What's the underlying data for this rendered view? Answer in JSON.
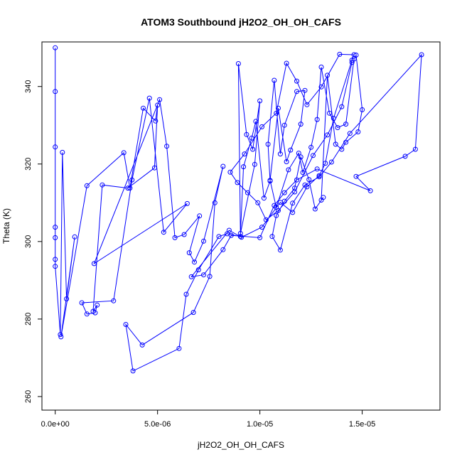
{
  "chart_data": {
    "type": "line",
    "title": "ATOM3 Southbound jH2O2_OH_OH_CAFS",
    "xlabel": "jH2O2_OH_OH_CAFS",
    "ylabel": "Theta (K)",
    "xlim": [
      -6.5e-07,
      1.88e-05
    ],
    "ylim": [
      256.5,
      351.5
    ],
    "x_ticks": [
      0,
      5e-06,
      1e-05,
      1.5e-05
    ],
    "x_tick_labels": [
      "0.0e+00",
      "5.0e-06",
      "1.0e-05",
      "1.5e-05"
    ],
    "y_ticks": [
      260,
      280,
      300,
      320,
      340
    ],
    "y_tick_labels": [
      "260",
      "280",
      "300",
      "320",
      "340"
    ],
    "grid": false,
    "color": "#0000ff",
    "markers": "open-circle",
    "series": [
      {
        "x": [
          0.0,
          0.0,
          0.0,
          0.0,
          0.0,
          0.0,
          0.0,
          2.5e-07,
          3.5e-07,
          5.5e-07,
          9.5e-07,
          2.8e-07,
          1.55e-06,
          3.35e-06,
          3.65e-06,
          4.3e-06,
          4.9e-06,
          5e-06,
          4.85e-06,
          3.55e-06,
          2.3e-06,
          1.85e-06,
          2.05e-06,
          1.95e-06,
          1.55e-06,
          1.3e-06,
          2.85e-06,
          3.75e-06,
          4.6e-06,
          5.3e-06,
          6.45e-06,
          1.9e-06,
          5.1e-06,
          5.45e-06,
          5.85e-06,
          6.3e-06,
          7.05e-06,
          6.55e-06,
          6.8e-06,
          7.25e-06,
          8.2e-06,
          7.8e-06,
          7.55e-06,
          6.75e-06,
          4.25e-06,
          3.45e-06,
          3.8e-06,
          6.05e-06,
          6.4e-06,
          7e-06,
          8e-06,
          8.4e-06,
          9.05e-06,
          8.95e-06,
          9.35e-06,
          9.65e-06,
          1e-05,
          9.75e-06,
          9.05e-06,
          9.2e-06,
          9.6e-06,
          9.8e-06,
          1.02e-05,
          1.05e-05,
          1.04e-05,
          1.07e-05,
          1.1e-05,
          1.12e-05,
          1.18e-05,
          1.22e-05,
          1.2e-05,
          1.15e-05,
          1.13e-05,
          1.09e-05,
          1.05e-05,
          1.08e-05,
          1.14e-05,
          1.19e-05,
          1.21e-05,
          1.25e-05,
          1.28e-05,
          1.3e-05,
          1.34e-05,
          1.38e-05,
          1.42e-05,
          1.46e-05,
          1.47e-05,
          1.5e-05,
          1.48e-05,
          1.42e-05,
          1.4e-05,
          1.37e-05,
          1.33e-05,
          1.3e-05,
          1.31e-05,
          1.27e-05,
          1.24e-05,
          1.2e-05,
          1.17e-05,
          1.12e-05,
          1.08e-05,
          1.06e-05,
          1.1e-05,
          1.16e-05,
          1.22e-05,
          1.29e-05,
          1.35e-05,
          1.44e-05,
          1.79e-05,
          1.76e-05,
          1.71e-05,
          1.47e-05,
          1.54e-05,
          1.28e-05,
          1.18e-05,
          1.12e-05,
          1.07e-05,
          1e-05,
          8.6e-06,
          8.2e-06,
          7.25e-06,
          6.65e-06,
          8.5e-06,
          9.1e-06,
          1.01e-05,
          1.1e-05,
          1.16e-05,
          1.23e-05,
          1.29e-05,
          1.32e-05,
          1.36e-05,
          1.45e-05,
          1.46e-05,
          1.39e-05,
          1.3e-05,
          1.23e-05,
          1.18e-05,
          1.13e-05,
          1.08e-05,
          1.01e-05,
          9.25e-06,
          8.55e-06,
          8.9e-06,
          9.4e-06,
          9.9e-06,
          1.03e-05,
          1.09e-05,
          1.17e-05,
          1.26e-05,
          1.33e-05,
          1.4e-05,
          1.45e-05
        ],
        "y": [
          350.0,
          338.7,
          324.4,
          303.7,
          301.0,
          295.4,
          293.6,
          276.0,
          323.0,
          285.2,
          301.2,
          275.4,
          314.4,
          322.9,
          313.8,
          334.4,
          331.1,
          335.2,
          319.0,
          313.8,
          314.6,
          282.0,
          283.6,
          281.6,
          281.3,
          284.2,
          284.7,
          315.9,
          337.0,
          302.4,
          309.8,
          294.3,
          336.6,
          324.6,
          301.0,
          301.8,
          306.6,
          297.1,
          294.7,
          300.1,
          319.4,
          310.0,
          291.0,
          281.7,
          273.3,
          278.6,
          266.6,
          272.4,
          286.4,
          292.7,
          301.3,
          302.0,
          301.3,
          345.9,
          327.6,
          323.8,
          336.3,
          319.9,
          302.1,
          319.3,
          326.7,
          331.0,
          311.2,
          315.6,
          325.1,
          341.6,
          322.6,
          330.0,
          338.7,
          339.0,
          330.3,
          323.6,
          320.6,
          334.4,
          315.8,
          308.8,
          318.5,
          322.8,
          317.8,
          324.3,
          331.5,
          345.0,
          333.1,
          329.4,
          330.3,
          347.1,
          348.1,
          334.0,
          328.3,
          325.6,
          323.8,
          325.1,
          342.9,
          310.7,
          311.4,
          308.4,
          316.0,
          321.8,
          313.8,
          310.4,
          306.7,
          301.3,
          297.8,
          309.9,
          314.6,
          316.7,
          320.5,
          327.9,
          348.2,
          323.8,
          322.0,
          316.8,
          313.1,
          318.7,
          315.9,
          312.6,
          309.3,
          301.0,
          301.6,
          297.9,
          291.4,
          290.9,
          302.9,
          301.1,
          303.7,
          310.1,
          307.5,
          314.1,
          317.0,
          320.2,
          331.8,
          346.8,
          348.2,
          348.3,
          339.9,
          335.3,
          341.4,
          346.0,
          333.1,
          329.6,
          322.6,
          317.9,
          315.2,
          312.6,
          310.0,
          305.6,
          308.0,
          312.8,
          322.2,
          327.5,
          334.8,
          346.2
        ]
      }
    ]
  }
}
